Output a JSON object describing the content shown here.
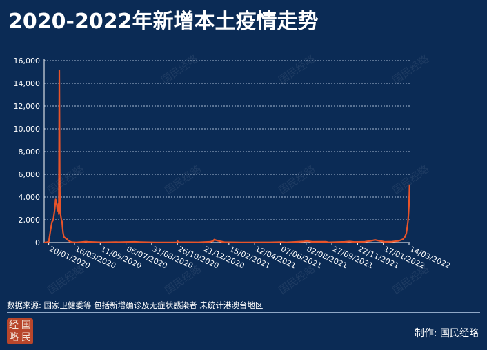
{
  "title": "2020-2022年新增本土疫情走势",
  "source_note": "数据来源: 国家卫健委等 包括新增确诊及无症状感染者 未统计港澳台地区",
  "credit": "制作: 国民经略",
  "logo": {
    "chars": [
      "经",
      "国",
      "略",
      "民"
    ]
  },
  "watermark": "国民经略",
  "colors": {
    "background": "#0b2b55",
    "line": "#e8542a",
    "grid": "#a9bbd3",
    "axis": "#ffffff"
  },
  "chart_data": {
    "type": "line",
    "title": "",
    "xlabel": "",
    "ylabel": "",
    "ylim": [
      0,
      16000
    ],
    "yticks": [
      0,
      2000,
      4000,
      6000,
      8000,
      10000,
      12000,
      14000,
      16000
    ],
    "ytick_labels": [
      "0",
      "2,000",
      "4,000",
      "6,000",
      "8,000",
      "10,000",
      "12,000",
      "14,000",
      "16,000"
    ],
    "xlim": [
      "2020-01-10",
      "2022-03-17"
    ],
    "xtick_labels": [
      "20/01/2020",
      "16/03/2020",
      "11/05/2020",
      "06/07/2020",
      "31/08/2020",
      "26/10/2020",
      "21/12/2020",
      "15/02/2021",
      "12/04/2021",
      "07/06/2021",
      "02/08/2021",
      "27/09/2021",
      "22/11/2021",
      "17/01/2022",
      "14/03/2022"
    ],
    "xtick_dates": [
      "2020-01-20",
      "2020-03-16",
      "2020-05-11",
      "2020-07-06",
      "2020-08-31",
      "2020-10-26",
      "2020-12-21",
      "2021-02-15",
      "2021-04-12",
      "2021-06-07",
      "2021-08-02",
      "2021-09-27",
      "2021-11-22",
      "2022-01-17",
      "2022-03-14"
    ],
    "grid": true,
    "series": [
      {
        "values": [
          [
            "2020-01-10",
            0
          ],
          [
            "2020-01-15",
            20
          ],
          [
            "2020-01-20",
            80
          ],
          [
            "2020-01-24",
            1100
          ],
          [
            "2020-01-27",
            1800
          ],
          [
            "2020-01-30",
            2000
          ],
          [
            "2020-02-02",
            2900
          ],
          [
            "2020-02-04",
            3800
          ],
          [
            "2020-02-06",
            3500
          ],
          [
            "2020-02-08",
            2800
          ],
          [
            "2020-02-10",
            3400
          ],
          [
            "2020-02-11",
            2500
          ],
          [
            "2020-02-12",
            15150
          ],
          [
            "2020-02-13",
            5100
          ],
          [
            "2020-02-14",
            2700
          ],
          [
            "2020-02-16",
            2100
          ],
          [
            "2020-02-18",
            1800
          ],
          [
            "2020-02-20",
            900
          ],
          [
            "2020-02-22",
            500
          ],
          [
            "2020-02-25",
            400
          ],
          [
            "2020-02-28",
            320
          ],
          [
            "2020-03-02",
            200
          ],
          [
            "2020-03-06",
            100
          ],
          [
            "2020-03-10",
            30
          ],
          [
            "2020-03-20",
            10
          ],
          [
            "2020-04-10",
            80
          ],
          [
            "2020-04-14",
            60
          ],
          [
            "2020-05-15",
            20
          ],
          [
            "2020-06-14",
            40
          ],
          [
            "2020-06-20",
            30
          ],
          [
            "2020-07-25",
            60
          ],
          [
            "2020-08-05",
            40
          ],
          [
            "2020-09-10",
            10
          ],
          [
            "2020-10-25",
            10
          ],
          [
            "2020-10-26",
            140
          ],
          [
            "2020-10-28",
            30
          ],
          [
            "2020-12-10",
            20
          ],
          [
            "2021-01-05",
            60
          ],
          [
            "2021-01-12",
            140
          ],
          [
            "2021-01-14",
            260
          ],
          [
            "2021-01-18",
            200
          ],
          [
            "2021-01-25",
            120
          ],
          [
            "2021-02-05",
            30
          ],
          [
            "2021-03-15",
            10
          ],
          [
            "2021-05-15",
            20
          ],
          [
            "2021-06-10",
            40
          ],
          [
            "2021-06-20",
            20
          ],
          [
            "2021-07-28",
            90
          ],
          [
            "2021-08-05",
            130
          ],
          [
            "2021-08-15",
            60
          ],
          [
            "2021-09-14",
            70
          ],
          [
            "2021-09-20",
            20
          ],
          [
            "2021-10-25",
            60
          ],
          [
            "2021-11-05",
            90
          ],
          [
            "2021-11-15",
            50
          ],
          [
            "2021-12-08",
            70
          ],
          [
            "2021-12-22",
            160
          ],
          [
            "2021-12-30",
            230
          ],
          [
            "2022-01-08",
            150
          ],
          [
            "2022-01-20",
            60
          ],
          [
            "2022-02-05",
            80
          ],
          [
            "2022-02-20",
            150
          ],
          [
            "2022-03-01",
            300
          ],
          [
            "2022-03-05",
            500
          ],
          [
            "2022-03-08",
            800
          ],
          [
            "2022-03-10",
            1300
          ],
          [
            "2022-03-12",
            2000
          ],
          [
            "2022-03-13",
            2600
          ],
          [
            "2022-03-14",
            3400
          ],
          [
            "2022-03-15",
            5100
          ]
        ]
      }
    ]
  }
}
